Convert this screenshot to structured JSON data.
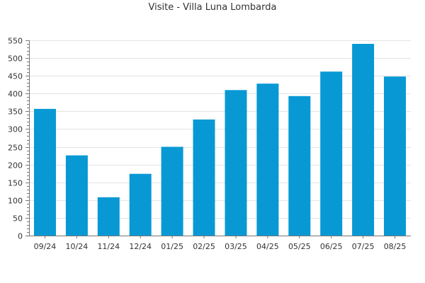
{
  "chart_data": {
    "type": "bar",
    "title": "Visite - Villa Luna Lombarda",
    "xlabel": "",
    "ylabel": "",
    "categories": [
      "09/24",
      "10/24",
      "11/24",
      "12/24",
      "01/25",
      "02/25",
      "03/25",
      "04/25",
      "05/25",
      "06/25",
      "07/25",
      "08/25"
    ],
    "values": [
      357,
      226,
      108,
      174,
      250,
      327,
      410,
      428,
      393,
      462,
      540,
      448
    ],
    "ylim": [
      0,
      550
    ],
    "yticks": [
      "0",
      "50",
      "100",
      "150",
      "200",
      "250",
      "300",
      "350",
      "400",
      "450",
      "500",
      "550"
    ],
    "grid": true,
    "legend": "none"
  },
  "colors": {
    "bar": "#0899d4",
    "grid": "#e3e3e3",
    "axis": "#777777",
    "text": "#333333"
  }
}
